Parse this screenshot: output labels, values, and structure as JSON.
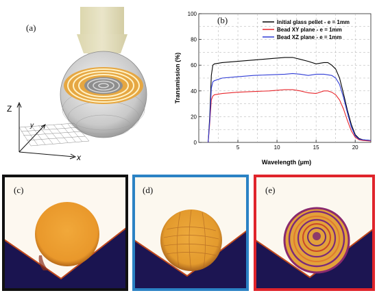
{
  "panels": {
    "a": {
      "label": "(a)",
      "axes": {
        "z": "Z",
        "y": "y",
        "x": "x"
      }
    },
    "b": {
      "label": "(b)"
    },
    "c": {
      "label": "(c)",
      "border_color": "#111111"
    },
    "d": {
      "label": "(d)",
      "border_color": "#2b82c4"
    },
    "e": {
      "label": "(e)",
      "border_color": "#e0242b"
    }
  },
  "chart_data": {
    "type": "line",
    "title": "",
    "xlabel": "Wavelength (μm)",
    "ylabel": "Transmission (%)",
    "xlim": [
      0,
      22
    ],
    "ylim": [
      0,
      100
    ],
    "x_ticks": [
      5,
      10,
      15,
      20
    ],
    "y_ticks": [
      0,
      20,
      40,
      60,
      80,
      100
    ],
    "grid": "dashed",
    "legend_position": "top-right",
    "series": [
      {
        "name": "Initial glass pellet - e = 1mm",
        "color": "#000000",
        "x": [
          1.2,
          1.4,
          1.6,
          1.8,
          2.0,
          3,
          5,
          7,
          9,
          11,
          12,
          13,
          14,
          15,
          16,
          16.5,
          17,
          17.5,
          18,
          18.5,
          19,
          19.5,
          20,
          20.5,
          21,
          22
        ],
        "y": [
          0,
          20,
          52,
          60,
          61,
          62,
          63,
          64,
          65,
          66,
          66,
          64.5,
          63,
          61,
          62,
          62,
          60,
          57,
          50,
          38,
          25,
          14,
          6,
          3,
          2,
          1.5
        ]
      },
      {
        "name": "Bead XY plane - e = 1mm",
        "color": "#e8262b",
        "x": [
          1.2,
          1.4,
          1.6,
          1.8,
          2.0,
          3,
          5,
          7,
          9,
          11,
          12,
          13,
          14,
          15,
          16,
          16.5,
          17,
          17.5,
          18,
          18.5,
          19,
          19.5,
          20,
          20.5,
          21,
          22
        ],
        "y": [
          0,
          15,
          33,
          36,
          37,
          38,
          39,
          39.5,
          40,
          41,
          41,
          40,
          38.5,
          38,
          40,
          40,
          39,
          37,
          33,
          26,
          17,
          9,
          4,
          2,
          1.5,
          1
        ]
      },
      {
        "name": "Bead XZ plane - e = 1mm",
        "color": "#2e3bd6",
        "x": [
          1.2,
          1.4,
          1.6,
          1.8,
          2.0,
          3,
          5,
          7,
          9,
          11,
          12,
          13,
          14,
          15,
          16,
          16.5,
          17,
          17.5,
          18,
          18.5,
          19,
          19.5,
          20,
          20.5,
          21,
          22
        ],
        "y": [
          0,
          17,
          42,
          47,
          48,
          50,
          51,
          52,
          52.5,
          53,
          53.5,
          53,
          52,
          53,
          53,
          52.5,
          52,
          50,
          45,
          35,
          23,
          12,
          5,
          2.5,
          2,
          1.5
        ]
      }
    ]
  }
}
